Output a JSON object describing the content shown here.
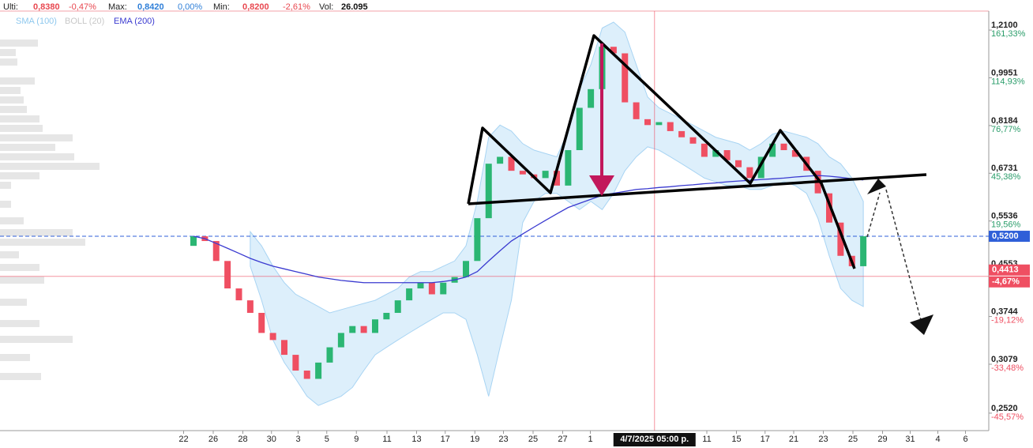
{
  "header": {
    "items": [
      {
        "label": "Ulti:",
        "value": "0,8380",
        "change": "-0,47%",
        "color": "#e8474f"
      },
      {
        "label": "Max:",
        "value": "0,8420",
        "change": "0,00%",
        "color": "#2f7fd8"
      },
      {
        "label": "Min:",
        "value": "0,8200",
        "change": "-2,61%",
        "color": "#e8474f"
      }
    ],
    "vol_label": "Vol:",
    "vol": "26.095"
  },
  "indicators": [
    {
      "name": "SMA (100)",
      "color": "#8ec8ee"
    },
    {
      "name": "BOLL (20)",
      "color": "#c8c8c8"
    },
    {
      "name": "EMA (200)",
      "color": "#3a3ad0"
    }
  ],
  "chart_data": {
    "type": "candlestick",
    "log_scale": true,
    "up_color": "#2bb673",
    "down_color": "#ef4f62",
    "ylim": [
      0.2346,
      1.308
    ],
    "xlim": [
      0,
      100
    ],
    "yticks": [
      {
        "value": 1.21,
        "label": "1,2100"
      },
      {
        "value": 0.9951,
        "label": "0,9951"
      },
      {
        "value": 0.8184,
        "label": "0,8184"
      },
      {
        "value": 0.6731,
        "label": "0,6731"
      },
      {
        "value": 0.5536,
        "label": "0,5536"
      },
      {
        "value": 0.4553,
        "label": "0,4553"
      },
      {
        "value": 0.3744,
        "label": "0,3744"
      },
      {
        "value": 0.3079,
        "label": "0,3079"
      },
      {
        "value": 0.252,
        "label": "0,2520"
      }
    ],
    "ytick_percents": [
      "161,33%",
      "114,93%",
      "76,77%",
      "45,38%",
      "19,56%",
      null,
      "-19,12%",
      "-33,48%",
      "-45,57%"
    ],
    "xticks": [
      {
        "value": 18.6,
        "label": "22"
      },
      {
        "value": 21.6,
        "label": "26"
      },
      {
        "value": 24.6,
        "label": "28"
      },
      {
        "value": 27.5,
        "label": "30"
      },
      {
        "value": 30.2,
        "label": "3"
      },
      {
        "value": 33.1,
        "label": "5"
      },
      {
        "value": 36.1,
        "label": "9"
      },
      {
        "value": 39.2,
        "label": "11"
      },
      {
        "value": 42.2,
        "label": "13"
      },
      {
        "value": 45.1,
        "label": "17"
      },
      {
        "value": 48.1,
        "label": "19"
      },
      {
        "value": 51.0,
        "label": "23"
      },
      {
        "value": 54.0,
        "label": "25"
      },
      {
        "value": 57.0,
        "label": "27"
      },
      {
        "value": 59.8,
        "label": "1"
      },
      {
        "value": 71.6,
        "label": "11"
      },
      {
        "value": 74.6,
        "label": "15"
      },
      {
        "value": 77.5,
        "label": "17"
      },
      {
        "value": 80.4,
        "label": "21"
      },
      {
        "value": 83.4,
        "label": "23"
      },
      {
        "value": 86.4,
        "label": "25"
      },
      {
        "value": 89.4,
        "label": "29"
      },
      {
        "value": 92.2,
        "label": "31"
      },
      {
        "value": 95.0,
        "label": "4"
      },
      {
        "value": 97.8,
        "label": "6"
      }
    ],
    "last_price": {
      "value": 0.52,
      "label": "0,5200",
      "color": "#2f5fd8"
    },
    "crosshair": {
      "value": 0.4413,
      "label": "0,4413",
      "percent": "-4,67%",
      "x": 66.3,
      "x_label": "4/7/2025 05:00 p.",
      "color": "#ef4f62"
    },
    "x": [
      19.6,
      20.75,
      21.9,
      23.05,
      24.2,
      25.35,
      26.5,
      27.65,
      28.8,
      29.95,
      31.1,
      32.25,
      33.4,
      34.55,
      35.7,
      36.85,
      38.0,
      39.15,
      40.3,
      41.45,
      42.6,
      43.75,
      44.9,
      46.05,
      47.2,
      48.35,
      49.5,
      50.65,
      51.8,
      52.95,
      54.1,
      55.25,
      56.4,
      57.55,
      58.7,
      59.85,
      61.0,
      62.15,
      63.3,
      64.45,
      65.6,
      66.75,
      67.9,
      69.05,
      70.2,
      71.35,
      72.5,
      73.65,
      74.8,
      75.95,
      77.1,
      78.25,
      79.4,
      80.55,
      81.7,
      82.85,
      84.0,
      85.15,
      86.3,
      87.45
    ],
    "open": [
      0.5,
      0.52,
      0.51,
      0.47,
      0.42,
      0.4,
      0.38,
      0.35,
      0.34,
      0.32,
      0.3,
      0.29,
      0.31,
      0.33,
      0.35,
      0.36,
      0.35,
      0.37,
      0.38,
      0.4,
      0.42,
      0.43,
      0.41,
      0.43,
      0.44,
      0.47,
      0.56,
      0.7,
      0.72,
      0.68,
      0.67,
      0.66,
      0.68,
      0.64,
      0.74,
      0.88,
      0.95,
      1.13,
      1.1,
      0.9,
      0.84,
      0.82,
      0.83,
      0.8,
      0.78,
      0.76,
      0.72,
      0.74,
      0.71,
      0.69,
      0.66,
      0.72,
      0.76,
      0.74,
      0.72,
      0.68,
      0.62,
      0.55,
      0.48,
      0.46
    ],
    "close": [
      0.52,
      0.51,
      0.47,
      0.42,
      0.4,
      0.38,
      0.35,
      0.34,
      0.32,
      0.3,
      0.29,
      0.31,
      0.33,
      0.35,
      0.36,
      0.35,
      0.37,
      0.38,
      0.4,
      0.42,
      0.43,
      0.41,
      0.43,
      0.44,
      0.47,
      0.56,
      0.7,
      0.72,
      0.68,
      0.67,
      0.66,
      0.68,
      0.64,
      0.74,
      0.88,
      0.95,
      1.13,
      1.1,
      0.9,
      0.84,
      0.82,
      0.83,
      0.8,
      0.78,
      0.76,
      0.72,
      0.74,
      0.71,
      0.69,
      0.66,
      0.72,
      0.76,
      0.74,
      0.72,
      0.68,
      0.62,
      0.55,
      0.48,
      0.46,
      0.52
    ],
    "ema": [
      0.52,
      0.515,
      0.505,
      0.495,
      0.485,
      0.475,
      0.467,
      0.46,
      0.455,
      0.45,
      0.445,
      0.44,
      0.437,
      0.434,
      0.432,
      0.43,
      0.43,
      0.43,
      0.43,
      0.43,
      0.43,
      0.43,
      0.432,
      0.435,
      0.44,
      0.45,
      0.47,
      0.49,
      0.51,
      0.525,
      0.54,
      0.555,
      0.57,
      0.585,
      0.595,
      0.605,
      0.615,
      0.62,
      0.625,
      0.63,
      0.632,
      0.635,
      0.637,
      0.64,
      0.642,
      0.645,
      0.647,
      0.65,
      0.652,
      0.654,
      0.656,
      0.658,
      0.66,
      0.663,
      0.665,
      0.667,
      0.665,
      0.662,
      0.658,
      0.655
    ],
    "boll_upper": [
      null,
      null,
      null,
      null,
      null,
      0.53,
      0.5,
      0.46,
      0.43,
      0.41,
      0.4,
      0.39,
      0.38,
      0.385,
      0.39,
      0.395,
      0.4,
      0.41,
      0.42,
      0.44,
      0.45,
      0.45,
      0.46,
      0.47,
      0.5,
      0.6,
      0.78,
      0.82,
      0.8,
      0.76,
      0.74,
      0.73,
      0.72,
      0.8,
      0.95,
      1.05,
      1.22,
      1.25,
      1.2,
      1.05,
      0.92,
      0.88,
      0.86,
      0.84,
      0.82,
      0.8,
      0.78,
      0.77,
      0.76,
      0.74,
      0.76,
      0.79,
      0.8,
      0.79,
      0.78,
      0.76,
      0.72,
      0.7,
      0.66,
      0.6
    ],
    "boll_lower": [
      null,
      null,
      null,
      null,
      null,
      0.46,
      0.4,
      0.34,
      0.31,
      0.29,
      0.27,
      0.26,
      0.265,
      0.27,
      0.28,
      0.3,
      0.32,
      0.33,
      0.34,
      0.35,
      0.36,
      0.37,
      0.38,
      0.38,
      0.37,
      0.32,
      0.27,
      0.33,
      0.4,
      0.55,
      0.6,
      0.62,
      0.62,
      0.6,
      0.58,
      0.6,
      0.58,
      0.62,
      0.68,
      0.72,
      0.75,
      0.74,
      0.72,
      0.7,
      0.68,
      0.66,
      0.65,
      0.64,
      0.64,
      0.63,
      0.63,
      0.64,
      0.65,
      0.64,
      0.62,
      0.56,
      0.48,
      0.42,
      0.4,
      0.39
    ]
  }
}
